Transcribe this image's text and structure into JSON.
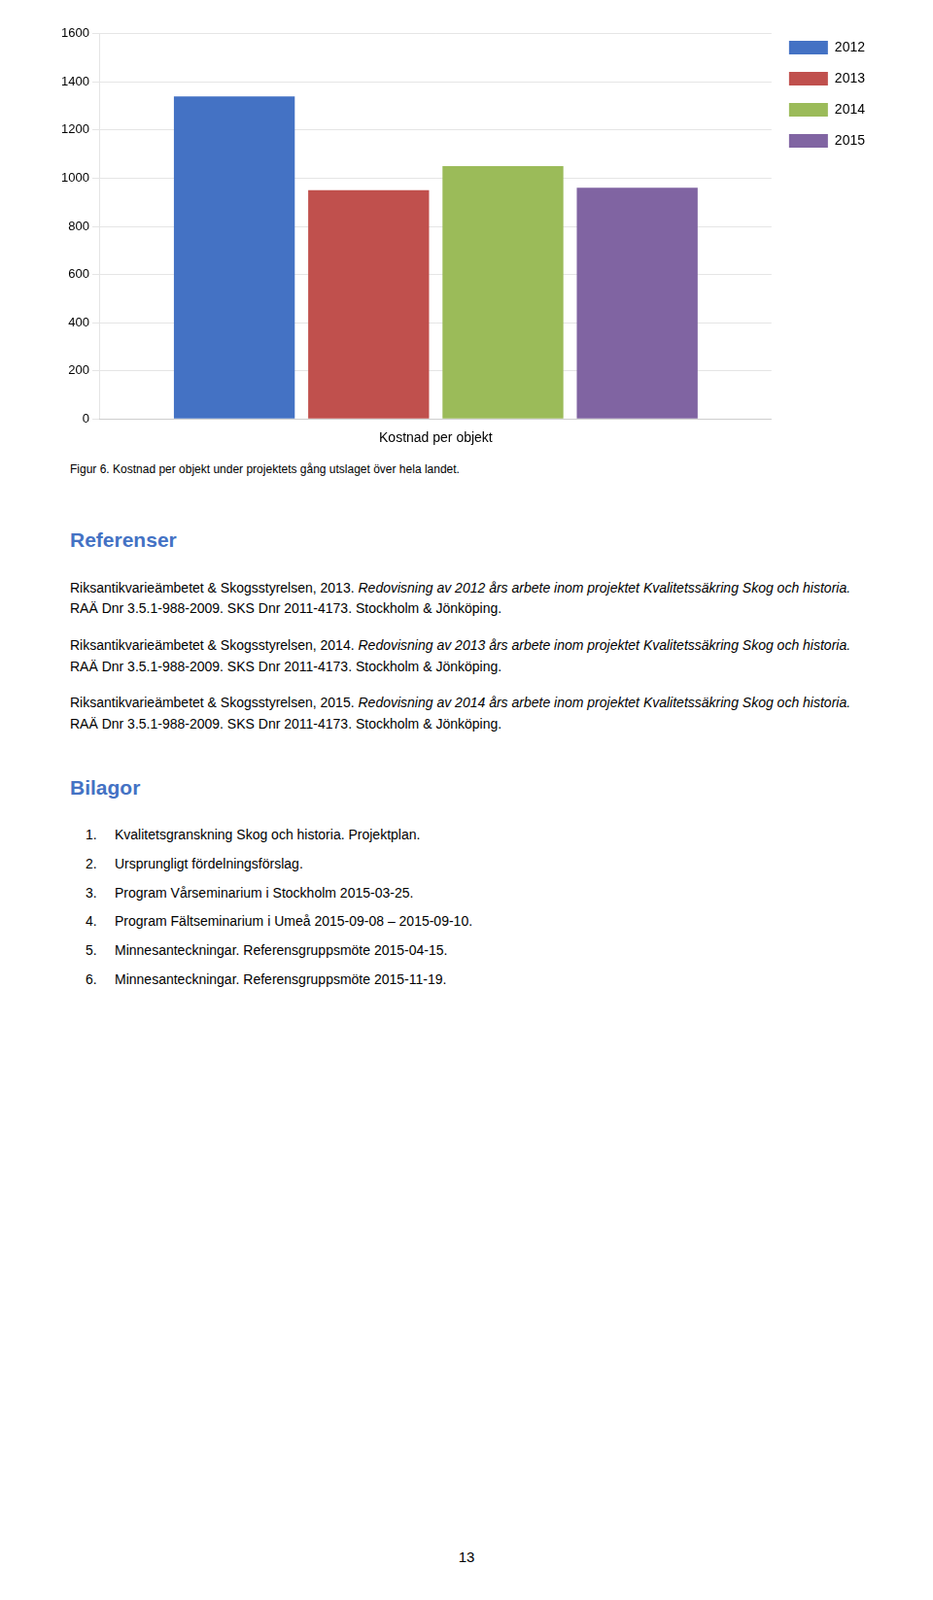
{
  "chart_data": {
    "type": "bar",
    "categories": [
      null
    ],
    "series": [
      {
        "name": "2012",
        "color": "#4472C4",
        "values": [
          1340
        ]
      },
      {
        "name": "2013",
        "color": "#C0504D",
        "values": [
          950
        ]
      },
      {
        "name": "2014",
        "color": "#9BBB59",
        "values": [
          1050
        ]
      },
      {
        "name": "2015",
        "color": "#8064A2",
        "values": [
          960
        ]
      }
    ],
    "x_label": "Kostnad per objekt",
    "caption": "Figur 6. Kostnad per objekt under projektets gång utslaget över hela landet.",
    "ylim": [
      0,
      1600
    ],
    "yticks": [
      0,
      200,
      400,
      600,
      800,
      1000,
      1200,
      1400,
      1600
    ],
    "grid": true,
    "legend": "right",
    "tick_labels": "y"
  },
  "page": {
    "heading_color": "#4472C4",
    "references_heading": "Referenser",
    "references": [
      [
        {
          "text": "Riksantikvarieämbetet & Skogsstyrelsen, 2013. ",
          "italic": false
        },
        {
          "text": "Redovisning av 2012 års arbete inom projektet Kvalitetssäkring Skog och historia.",
          "italic": true
        },
        {
          "text": " RAÄ Dnr 3.5.1-988-2009. SKS Dnr 2011-4173. Stockholm & Jönköping.",
          "italic": false
        }
      ],
      [
        {
          "text": "Riksantikvarieämbetet & Skogsstyrelsen, 2014. ",
          "italic": false
        },
        {
          "text": "Redovisning av 2013 års arbete inom projektet Kvalitetssäkring Skog och historia.",
          "italic": true
        },
        {
          "text": " RAÄ Dnr 3.5.1-988-2009. SKS Dnr 2011-4173. Stockholm & Jönköping.",
          "italic": false
        }
      ],
      [
        {
          "text": "Riksantikvarieämbetet & Skogsstyrelsen, 2015. ",
          "italic": false
        },
        {
          "text": "Redovisning av 2014 års arbete inom projektet Kvalitetssäkring Skog och historia.",
          "italic": true
        },
        {
          "text": " RAÄ Dnr 3.5.1-988-2009. SKS Dnr 2011-4173. Stockholm & Jönköping.",
          "italic": false
        }
      ]
    ],
    "appendix_heading": "Bilagor",
    "appendix_items": [
      {
        "label": "1.",
        "text": "Kvalitetsgranskning Skog och historia. Projektplan."
      },
      {
        "label": "2.",
        "text": "Ursprungligt fördelningsförslag."
      },
      {
        "label": "3.",
        "text": "Program Vårseminarium i Stockholm 2015-03-25."
      },
      {
        "label": "4.",
        "text": "Program Fältseminarium i Umeå 2015-09-08 – 2015-09-10."
      },
      {
        "label": "5.",
        "text": "Minnesanteckningar. Referensgruppsmöte 2015-04-15."
      },
      {
        "label": "6.",
        "text": "Minnesanteckningar. Referensgruppsmöte 2015-11-19."
      }
    ],
    "page_number": "13"
  }
}
